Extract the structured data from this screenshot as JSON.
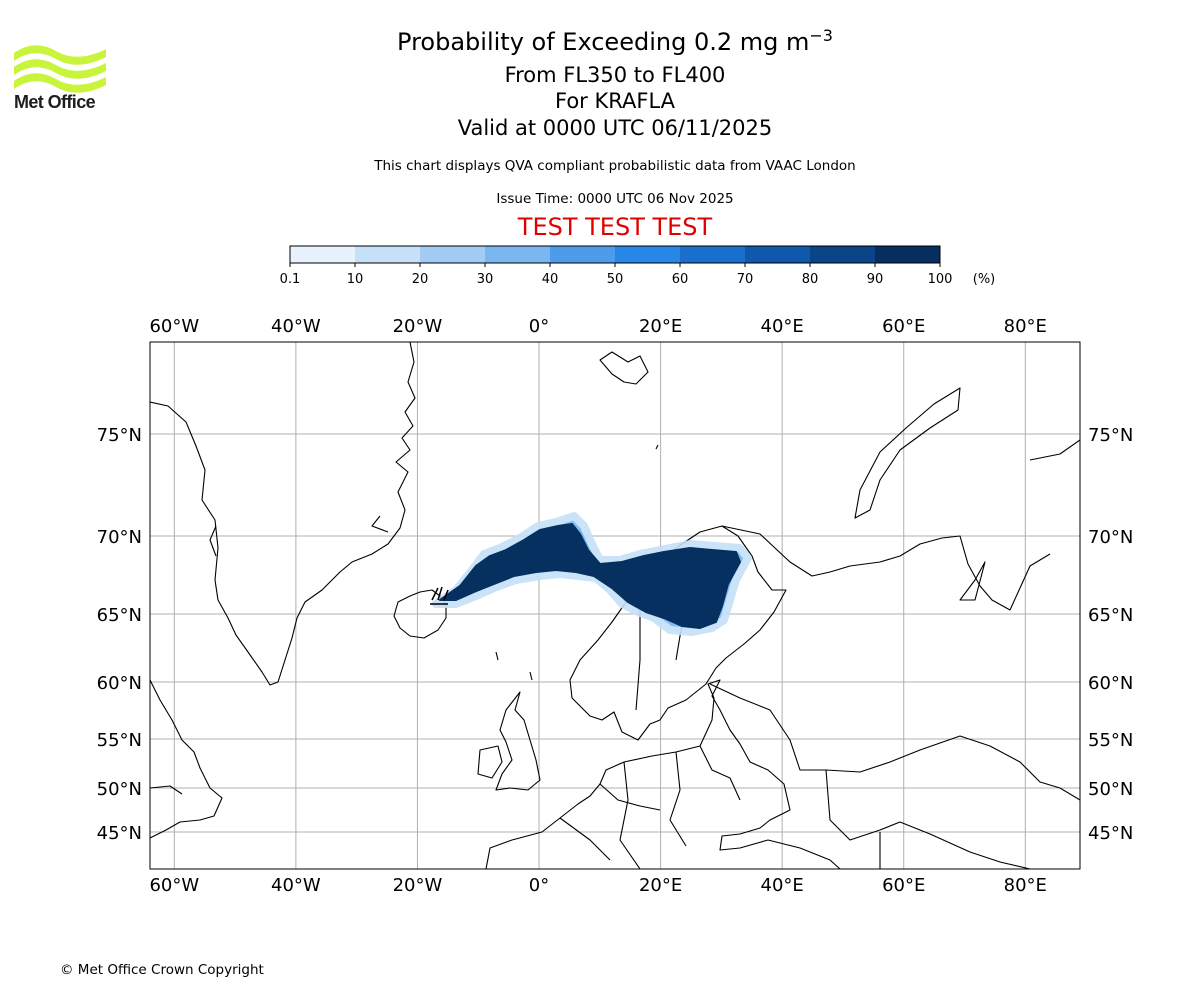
{
  "header": {
    "title": "Probability of Exceeding 0.2 mg m",
    "title_superscript": "−3",
    "flight_levels": "From FL350 to FL400",
    "volcano": "For KRAFLA",
    "valid_time": "Valid at 0000 UTC 06/11/2025",
    "description": "This chart displays QVA compliant probabilistic data from VAAC London",
    "issue_time": "Issue Time: 0000 UTC 06 Nov 2025",
    "test_banner": "TEST TEST TEST"
  },
  "logo": {
    "text": "Met Office",
    "color": "#c8f53c"
  },
  "colorbar": {
    "ticks": [
      "0.1",
      "10",
      "20",
      "30",
      "40",
      "50",
      "60",
      "70",
      "80",
      "90",
      "100"
    ],
    "unit": "(%)",
    "colors": [
      "#e8f2fd",
      "#c6e0f9",
      "#a3ccf5",
      "#7ab6f0",
      "#4c9ceb",
      "#2886e6",
      "#1a6fcc",
      "#0f58ac",
      "#0a4587",
      "#062e5e"
    ]
  },
  "map": {
    "lon_labels": [
      "60°W",
      "40°W",
      "20°W",
      "0°",
      "20°E",
      "40°E",
      "60°E",
      "80°E"
    ],
    "lat_labels": [
      "75°N",
      "70°N",
      "65°N",
      "60°N",
      "55°N",
      "50°N",
      "45°N"
    ],
    "lon_range": [
      -64,
      89
    ],
    "lat_ticks": [
      75,
      70,
      65,
      60,
      55,
      50,
      45
    ],
    "plume_color": "#05305f"
  },
  "footer": {
    "copyright": "© Met Office Crown Copyright"
  }
}
